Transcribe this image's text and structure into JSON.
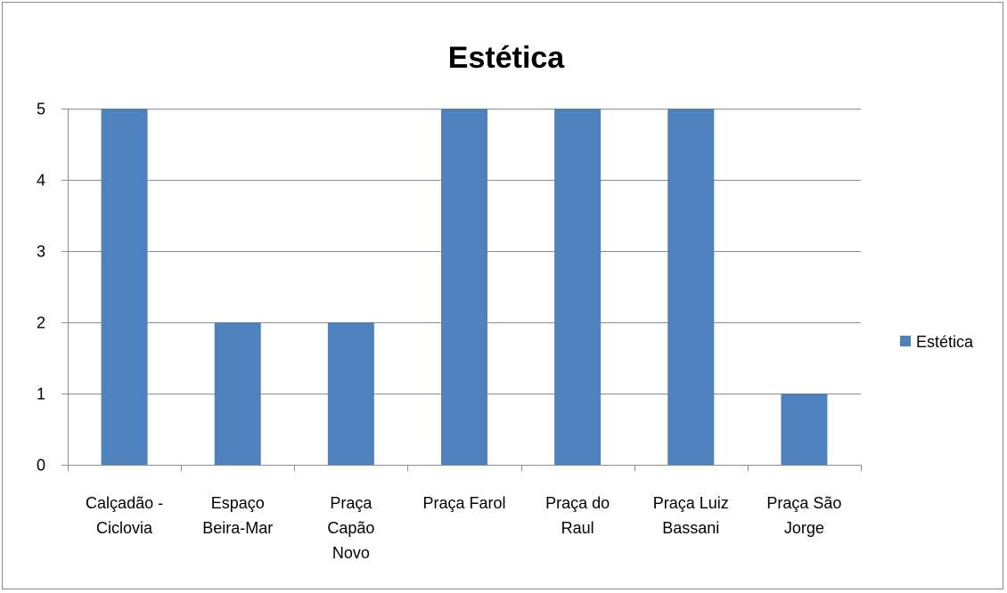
{
  "chart_data": {
    "type": "bar",
    "title": "Estética",
    "categories": [
      [
        "Calçadão -",
        "Ciclovia"
      ],
      [
        "Espaço",
        "Beira-Mar"
      ],
      [
        "Praça",
        "Capão",
        "Novo"
      ],
      [
        "Praça Farol"
      ],
      [
        "Praça do",
        "Raul"
      ],
      [
        "Praça Luiz",
        "Bassani"
      ],
      [
        "Praça São",
        "Jorge"
      ]
    ],
    "series": [
      {
        "name": "Estética",
        "values": [
          5,
          2,
          2,
          5,
          5,
          5,
          1
        ],
        "color": "#4f81bd"
      }
    ],
    "ylim": [
      0,
      5
    ],
    "yticks": [
      "0",
      "1",
      "2",
      "3",
      "4",
      "5"
    ],
    "grid": true,
    "legend_position": "right"
  }
}
